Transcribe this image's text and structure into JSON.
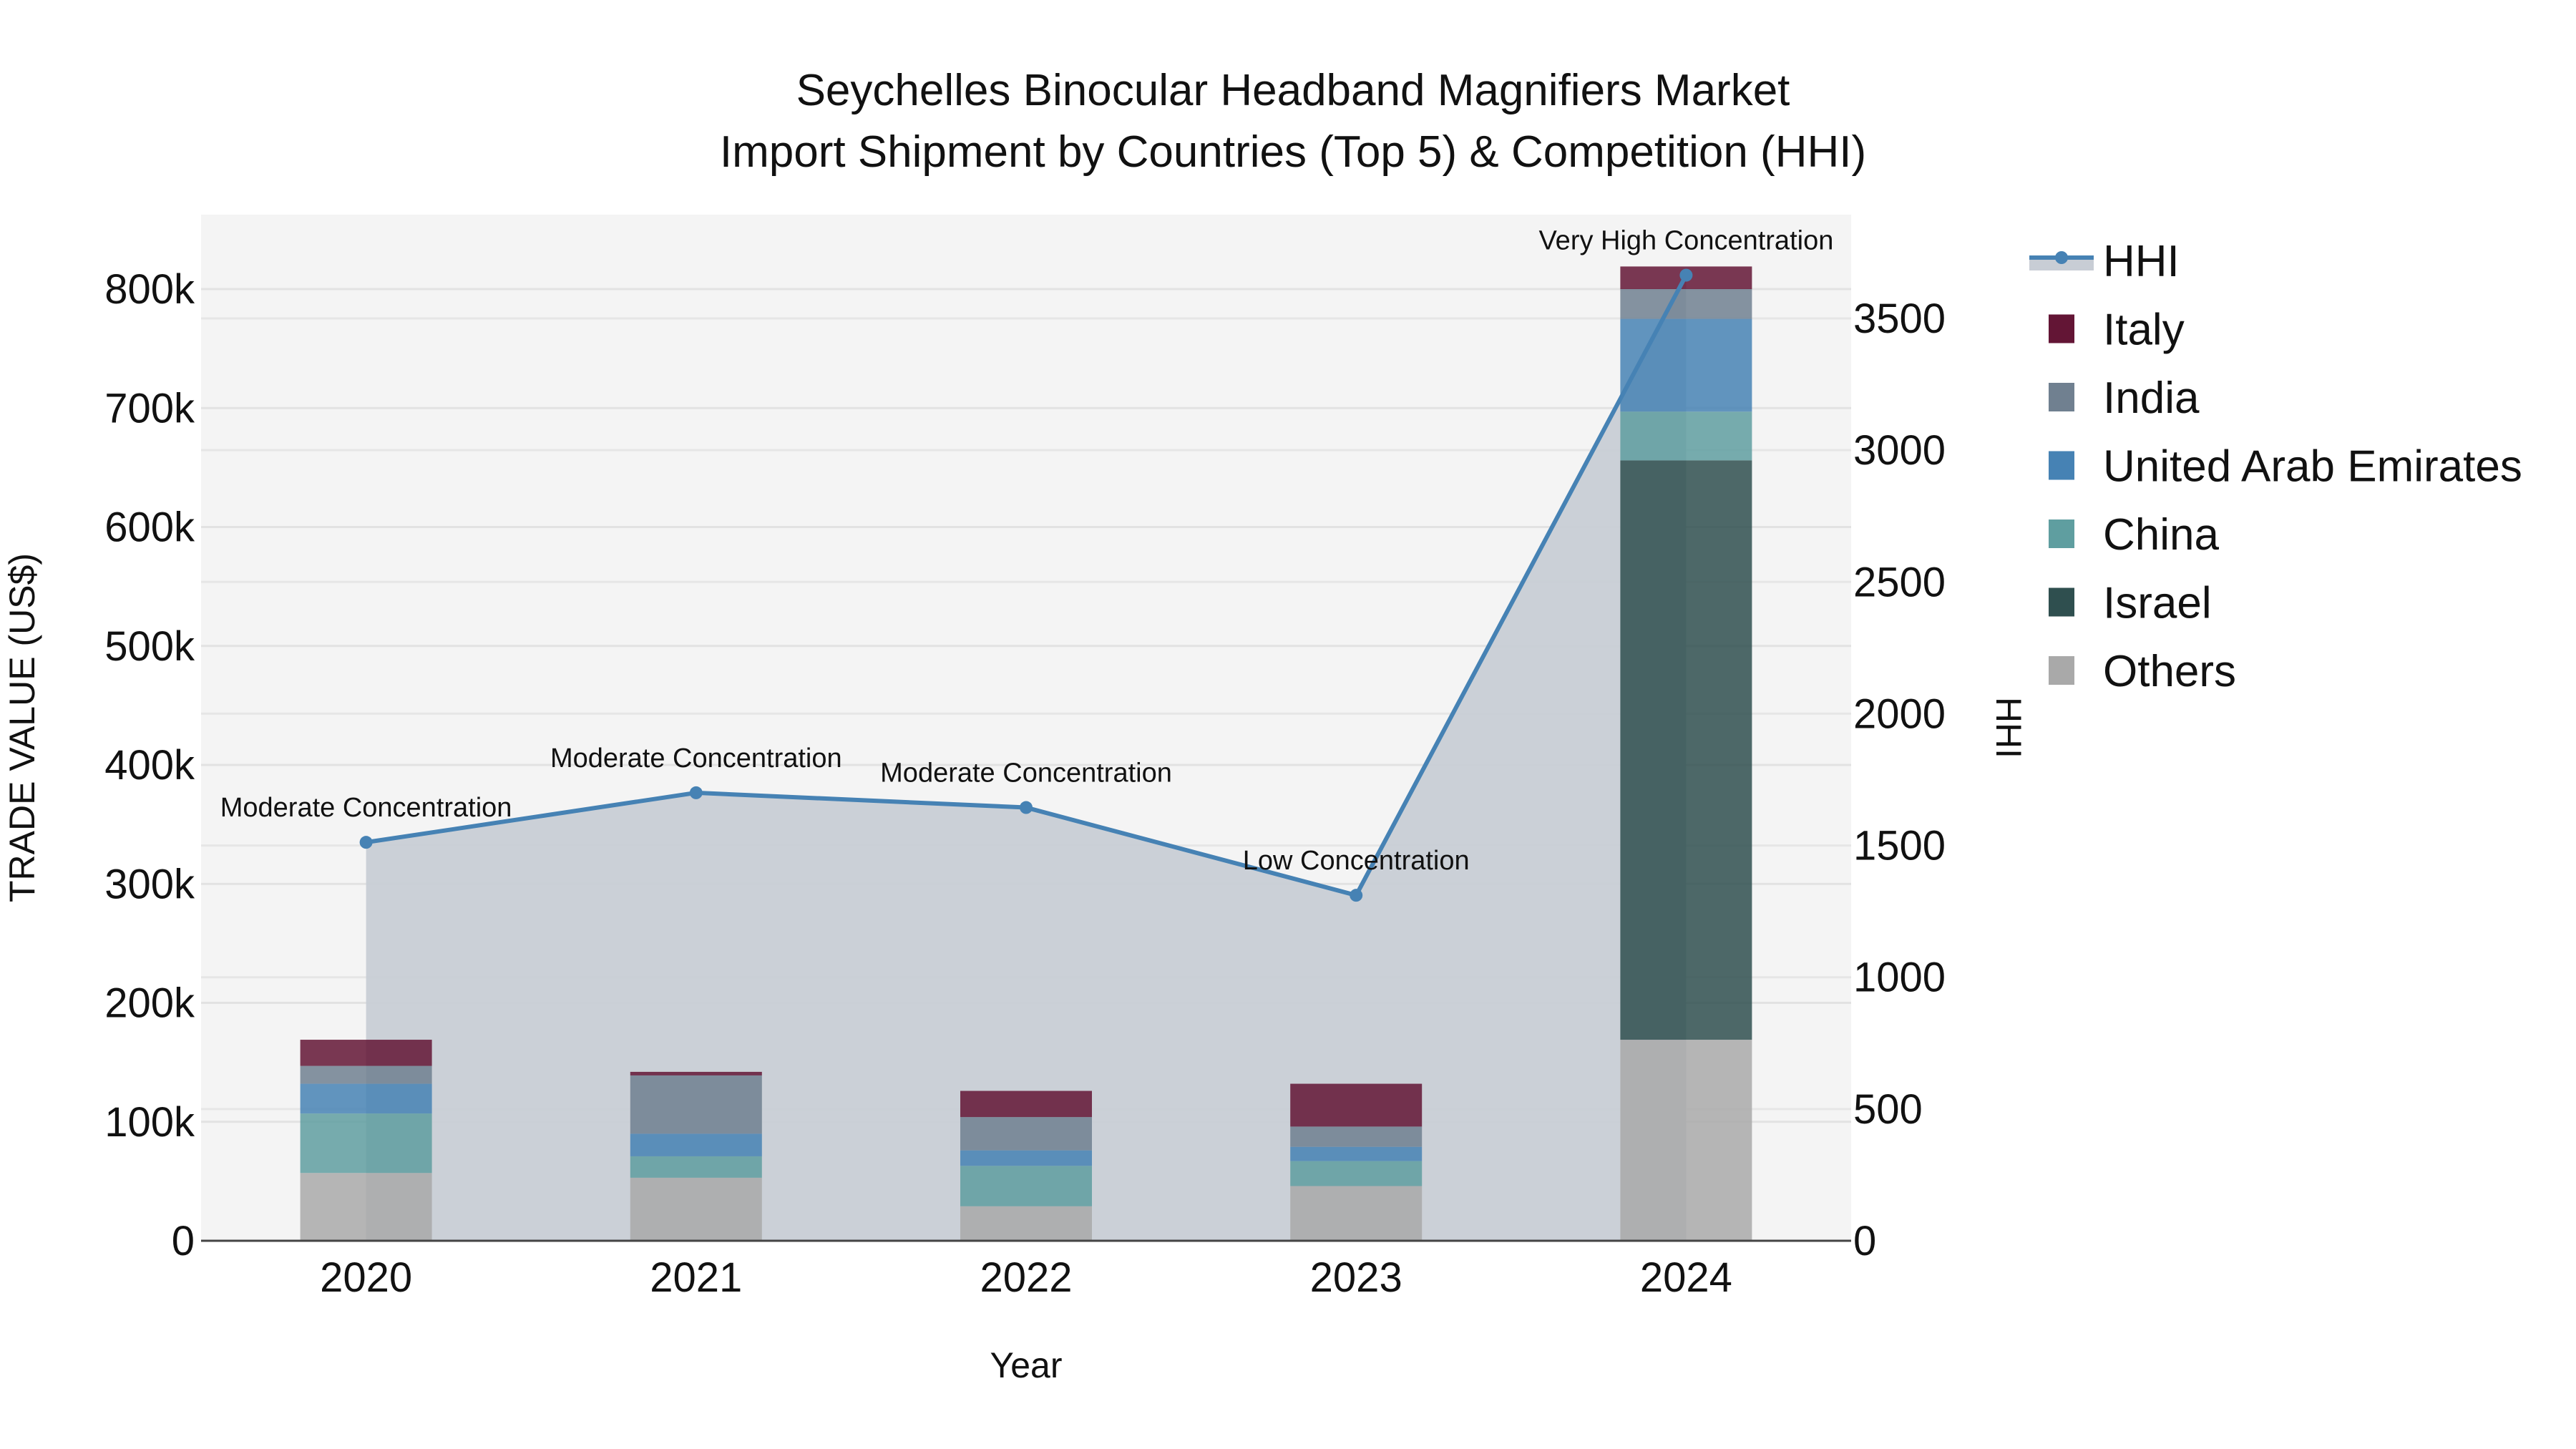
{
  "chart_data": {
    "type": "bar",
    "subtype": "stacked bar with secondary-axis line (HHI)",
    "title": "Seychelles Binocular Headband Magnifiers Market",
    "subtitle": "Import Shipment by Countries (Top 5) & Competition (HHI)",
    "xlabel": "Year",
    "ylabel": "TRADE VALUE (US$)",
    "y2label": "HHI",
    "categories": [
      "2020",
      "2021",
      "2022",
      "2023",
      "2024"
    ],
    "ylim": [
      0,
      860000
    ],
    "y_ticks": [
      0,
      100000,
      200000,
      300000,
      400000,
      500000,
      600000,
      700000,
      800000
    ],
    "y_tick_labels": [
      "0",
      "100k",
      "200k",
      "300k",
      "400k",
      "500k",
      "600k",
      "700k",
      "800k"
    ],
    "y2lim": [
      0,
      3900
    ],
    "y2_ticks": [
      0,
      500,
      1000,
      1500,
      2000,
      2500,
      3000,
      3500
    ],
    "y2_tick_labels": [
      "0",
      "500",
      "1000",
      "1500",
      "2000",
      "2500",
      "3000",
      "3500"
    ],
    "series": [
      {
        "name": "Others",
        "color": "#A9A9A9",
        "values": [
          57000,
          53000,
          29000,
          46000,
          169000
        ]
      },
      {
        "name": "Israel",
        "color": "#2F4F4F",
        "values": [
          0,
          0,
          0,
          0,
          487000
        ]
      },
      {
        "name": "China",
        "color": "#5F9EA0",
        "values": [
          50000,
          18000,
          34000,
          21000,
          41000
        ]
      },
      {
        "name": "United Arab Emirates",
        "color": "#4682B4",
        "values": [
          25000,
          19000,
          13000,
          12000,
          78000
        ]
      },
      {
        "name": "India",
        "color": "#708090",
        "values": [
          15000,
          49000,
          28000,
          17000,
          25000
        ]
      },
      {
        "name": "Italy",
        "color": "#631535",
        "values": [
          22000,
          3000,
          22000,
          36000,
          19000
        ]
      }
    ],
    "line_series": {
      "name": "HHI",
      "color": "#4682B4",
      "fill_color": "#C8CDD5",
      "axis": "y2",
      "values": [
        1512,
        1700,
        1644,
        1311,
        3664
      ],
      "labels": [
        "Moderate Concentration",
        "Moderate Concentration",
        "Moderate Concentration",
        "Low Concentration",
        "Very High Concentration"
      ]
    },
    "legend": {
      "position": "right",
      "items": [
        "HHI",
        "Italy",
        "India",
        "United Arab Emirates",
        "China",
        "Israel",
        "Others"
      ]
    },
    "grid": true,
    "plot_background": "#F4F4F4"
  }
}
